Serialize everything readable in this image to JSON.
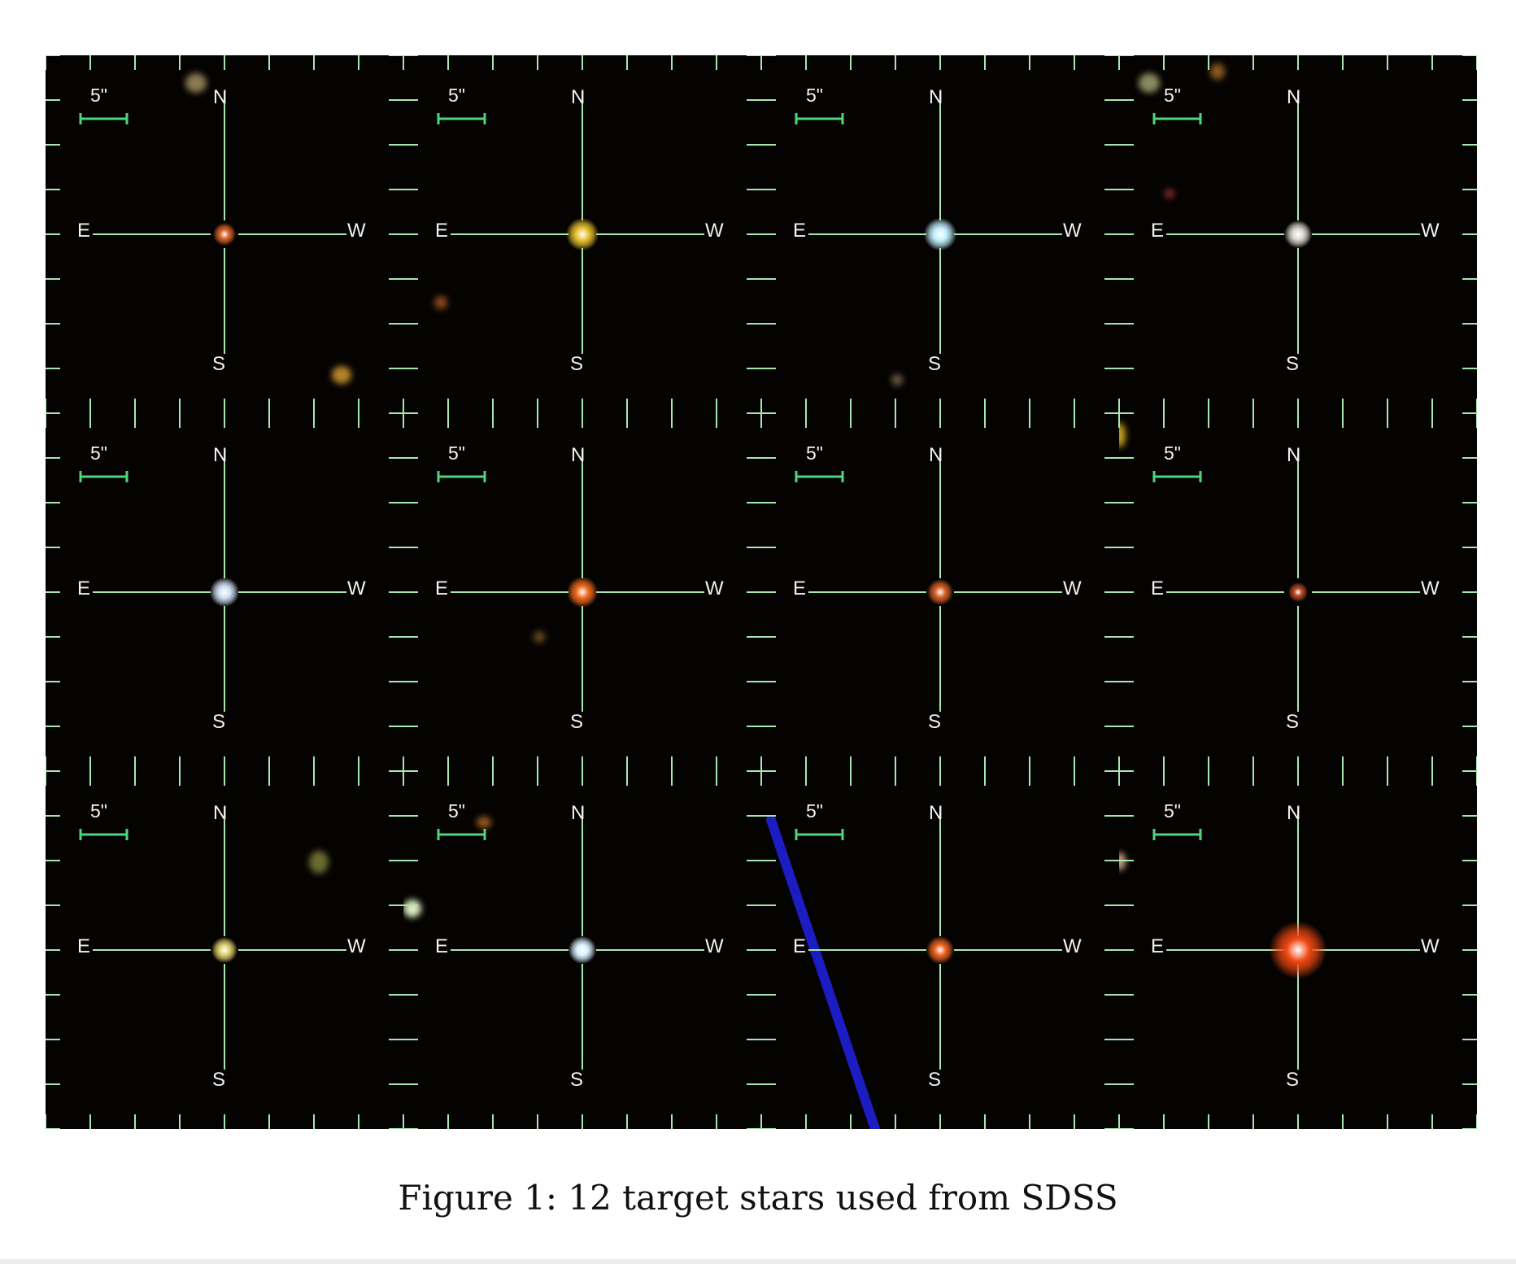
{
  "figure": {
    "caption": "Figure 1: 12 target stars used from SDSS",
    "labels": {
      "scale": "5\"",
      "north": "N",
      "south": "S",
      "east": "E",
      "west": "W"
    },
    "colors": {
      "crosshair": "#a8e6b0",
      "scalebar": "#4fd67a",
      "background": "#050302"
    },
    "panels": [
      {
        "star_color": "#d9662a"
      },
      {
        "star_color": "#e8c232"
      },
      {
        "star_color": "#bfefff"
      },
      {
        "star_color": "#d8d8cc"
      },
      {
        "star_color": "#cfe0f5"
      },
      {
        "star_color": "#f06a1e"
      },
      {
        "star_color": "#d9622a"
      },
      {
        "star_color": "#b84a26"
      },
      {
        "star_color": "#e0d070"
      },
      {
        "star_color": "#d8f0ff"
      },
      {
        "star_color": "#ef6422"
      },
      {
        "star_color": "#f04812"
      }
    ]
  }
}
